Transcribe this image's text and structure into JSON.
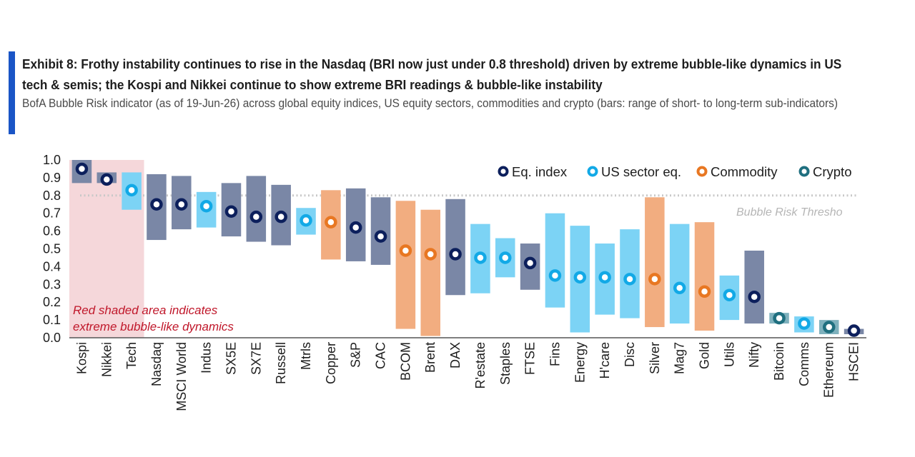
{
  "header": {
    "title": "Exhibit 8: Frothy instability continues to rise in the Nasdaq (BRI now just under 0.8 threshold) driven by extreme bubble-like dynamics in US tech & semis; the Kospi and Nikkei continue to show extreme BRI readings & bubble-like instability",
    "subtitle": "BofA Bubble Risk indicator (as of 19-Jun-26) across global equity indices, US equity sectors, commodities and crypto (bars: range of short- to long-term sub-indicators)"
  },
  "colors": {
    "accent": "#1a55c6",
    "eq_bar": "#7a87a6",
    "eq_marker": "#0c1f5c",
    "sector_bar": "#7cd3f5",
    "sector_marker": "#12a9e6",
    "commodity_bar": "#f2ad80",
    "commodity_marker": "#e87722",
    "crypto_bar": "#7fb1bd",
    "crypto_marker": "#1f6f7f",
    "shade": "#f5d7da",
    "threshold": "#c8c8c8",
    "annotation": "#c0172a"
  },
  "chart_data": {
    "type": "range-dot",
    "title": "",
    "xlabel": "",
    "ylabel": "",
    "ylim": [
      0.0,
      1.0
    ],
    "yticks": [
      "0.0",
      "0.1",
      "0.2",
      "0.3",
      "0.4",
      "0.5",
      "0.6",
      "0.7",
      "0.8",
      "0.9",
      "1.0"
    ],
    "grid": false,
    "legend_position": "top-right",
    "legend": [
      {
        "key": "eq",
        "label": "Eq. index"
      },
      {
        "key": "sector",
        "label": "US sector eq."
      },
      {
        "key": "commodity",
        "label": "Commodity"
      },
      {
        "key": "crypto",
        "label": "Crypto"
      }
    ],
    "threshold": {
      "value": 0.8,
      "label": "Bubble Risk Thresho"
    },
    "shaded_annotation": {
      "from_category": "Kospi",
      "to_category": "Tech",
      "ymin": 0.0,
      "ymax": 1.0,
      "line1": "Red shaded area indicates",
      "line2": "extreme bubble-like dynamics"
    },
    "items": [
      {
        "name": "Kospi",
        "type": "eq",
        "low": 0.87,
        "high": 1.0,
        "value": 0.95
      },
      {
        "name": "Nikkei",
        "type": "eq",
        "low": 0.87,
        "high": 0.93,
        "value": 0.89
      },
      {
        "name": "Tech",
        "type": "sector",
        "low": 0.72,
        "high": 0.93,
        "value": 0.83
      },
      {
        "name": "Nasdaq",
        "type": "eq",
        "low": 0.55,
        "high": 0.92,
        "value": 0.75
      },
      {
        "name": "MSCI World",
        "type": "eq",
        "low": 0.61,
        "high": 0.91,
        "value": 0.75
      },
      {
        "name": "Indus",
        "type": "sector",
        "low": 0.62,
        "high": 0.82,
        "value": 0.74
      },
      {
        "name": "SX5E",
        "type": "eq",
        "low": 0.57,
        "high": 0.87,
        "value": 0.71
      },
      {
        "name": "SX7E",
        "type": "eq",
        "low": 0.54,
        "high": 0.91,
        "value": 0.68
      },
      {
        "name": "Russell",
        "type": "eq",
        "low": 0.52,
        "high": 0.86,
        "value": 0.68
      },
      {
        "name": "Mtrls",
        "type": "sector",
        "low": 0.58,
        "high": 0.73,
        "value": 0.66
      },
      {
        "name": "Copper",
        "type": "commodity",
        "low": 0.44,
        "high": 0.83,
        "value": 0.65
      },
      {
        "name": "S&P",
        "type": "eq",
        "low": 0.43,
        "high": 0.84,
        "value": 0.62
      },
      {
        "name": "CAC",
        "type": "eq",
        "low": 0.41,
        "high": 0.79,
        "value": 0.57
      },
      {
        "name": "BCOM",
        "type": "commodity",
        "low": 0.05,
        "high": 0.77,
        "value": 0.49
      },
      {
        "name": "Brent",
        "type": "commodity",
        "low": 0.01,
        "high": 0.72,
        "value": 0.47
      },
      {
        "name": "DAX",
        "type": "eq",
        "low": 0.24,
        "high": 0.78,
        "value": 0.47
      },
      {
        "name": "R'estate",
        "type": "sector",
        "low": 0.25,
        "high": 0.64,
        "value": 0.45
      },
      {
        "name": "Staples",
        "type": "sector",
        "low": 0.34,
        "high": 0.56,
        "value": 0.45
      },
      {
        "name": "FTSE",
        "type": "eq",
        "low": 0.27,
        "high": 0.53,
        "value": 0.42
      },
      {
        "name": "Fins",
        "type": "sector",
        "low": 0.17,
        "high": 0.7,
        "value": 0.35
      },
      {
        "name": "Energy",
        "type": "sector",
        "low": 0.03,
        "high": 0.63,
        "value": 0.34
      },
      {
        "name": "H'care",
        "type": "sector",
        "low": 0.13,
        "high": 0.53,
        "value": 0.34
      },
      {
        "name": "Disc",
        "type": "sector",
        "low": 0.11,
        "high": 0.61,
        "value": 0.33
      },
      {
        "name": "Silver",
        "type": "commodity",
        "low": 0.06,
        "high": 0.79,
        "value": 0.33
      },
      {
        "name": "Mag7",
        "type": "sector",
        "low": 0.08,
        "high": 0.64,
        "value": 0.28
      },
      {
        "name": "Gold",
        "type": "commodity",
        "low": 0.04,
        "high": 0.65,
        "value": 0.26
      },
      {
        "name": "Utils",
        "type": "sector",
        "low": 0.1,
        "high": 0.35,
        "value": 0.24
      },
      {
        "name": "Nifty",
        "type": "eq",
        "low": 0.08,
        "high": 0.49,
        "value": 0.23
      },
      {
        "name": "Bitcoin",
        "type": "crypto",
        "low": 0.08,
        "high": 0.14,
        "value": 0.11
      },
      {
        "name": "Comms",
        "type": "sector",
        "low": 0.03,
        "high": 0.12,
        "value": 0.08
      },
      {
        "name": "Ethereum",
        "type": "crypto",
        "low": 0.02,
        "high": 0.1,
        "value": 0.06
      },
      {
        "name": "HSCEI",
        "type": "eq",
        "low": 0.02,
        "high": 0.05,
        "value": 0.04
      }
    ]
  }
}
